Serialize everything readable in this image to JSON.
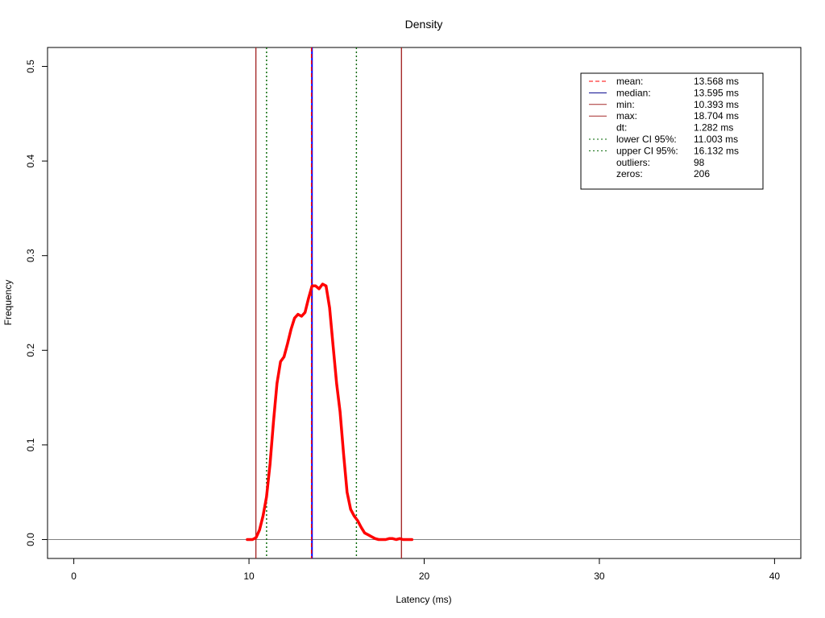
{
  "chart_data": {
    "type": "line",
    "title": "Density",
    "xlabel": "Latency (ms)",
    "ylabel": "Frequency",
    "xlim": [
      -1.5,
      41.5
    ],
    "ylim": [
      -0.02,
      0.52
    ],
    "xticks": [
      0,
      10,
      20,
      30,
      40
    ],
    "yticks": [
      0.0,
      0.1,
      0.2,
      0.3,
      0.4,
      0.5
    ],
    "xtick_labels": [
      "0",
      "10",
      "20",
      "30",
      "40"
    ],
    "ytick_labels": [
      "0.0",
      "0.1",
      "0.2",
      "0.3",
      "0.4",
      "0.5"
    ],
    "grid": false,
    "legend_position": "top-right",
    "colors": {
      "density": "#ff0000",
      "mean": "#ff0000",
      "median": "#0000ff",
      "minmax": "#a52a2a",
      "ci": "#006400",
      "baseline": "#808080"
    },
    "density_series": {
      "name": "",
      "x": [
        9.9,
        10.2,
        10.4,
        10.6,
        10.8,
        11.0,
        11.2,
        11.4,
        11.6,
        11.8,
        12.0,
        12.2,
        12.4,
        12.6,
        12.8,
        13.0,
        13.2,
        13.4,
        13.6,
        13.8,
        14.0,
        14.2,
        14.4,
        14.6,
        14.8,
        15.0,
        15.2,
        15.4,
        15.6,
        15.8,
        16.0,
        16.2,
        16.4,
        16.6,
        16.8,
        17.0,
        17.2,
        17.4,
        17.6,
        17.8,
        18.0,
        18.2,
        18.4,
        18.6,
        18.8,
        19.0,
        19.3
      ],
      "y": [
        0.0,
        0.0,
        0.002,
        0.01,
        0.025,
        0.045,
        0.08,
        0.125,
        0.165,
        0.188,
        0.193,
        0.207,
        0.222,
        0.234,
        0.238,
        0.236,
        0.24,
        0.255,
        0.268,
        0.268,
        0.265,
        0.27,
        0.268,
        0.245,
        0.205,
        0.165,
        0.135,
        0.09,
        0.05,
        0.032,
        0.025,
        0.02,
        0.013,
        0.007,
        0.005,
        0.003,
        0.001,
        0.0,
        0.0,
        0.0,
        0.001,
        0.001,
        0.0,
        0.001,
        0.0,
        0.0,
        0.0
      ]
    },
    "vlines": [
      {
        "key": "min",
        "x": 10.393,
        "style": "solid",
        "color": "#a52a2a"
      },
      {
        "key": "lower_ci",
        "x": 11.003,
        "style": "dotted",
        "color": "#006400"
      },
      {
        "key": "median",
        "x": 13.595,
        "style": "solid",
        "color": "#0000ff"
      },
      {
        "key": "mean",
        "x": 13.568,
        "style": "dashed",
        "color": "#ff0000"
      },
      {
        "key": "upper_ci",
        "x": 16.132,
        "style": "dotted",
        "color": "#006400"
      },
      {
        "key": "max",
        "x": 18.704,
        "style": "solid",
        "color": "#a52a2a"
      }
    ],
    "legend": [
      {
        "label": "mean:",
        "value": "13.568 ms",
        "line": "dashed",
        "color": "#ff0000"
      },
      {
        "label": "median:",
        "value": "13.595 ms",
        "line": "solid",
        "color": "#00008b"
      },
      {
        "label": "min:",
        "value": "10.393 ms",
        "line": "solid",
        "color": "#a52a2a"
      },
      {
        "label": "max:",
        "value": "18.704 ms",
        "line": "solid",
        "color": "#a52a2a"
      },
      {
        "label": "dt:",
        "value": "1.282 ms",
        "line": "none",
        "color": ""
      },
      {
        "label": "lower CI 95%:",
        "value": "11.003 ms",
        "line": "dotted",
        "color": "#006400"
      },
      {
        "label": "upper CI 95%:",
        "value": "16.132 ms",
        "line": "dotted",
        "color": "#006400"
      },
      {
        "label": "outliers:",
        "value": "98",
        "line": "none",
        "color": ""
      },
      {
        "label": "zeros:",
        "value": "206",
        "line": "none",
        "color": ""
      }
    ]
  }
}
